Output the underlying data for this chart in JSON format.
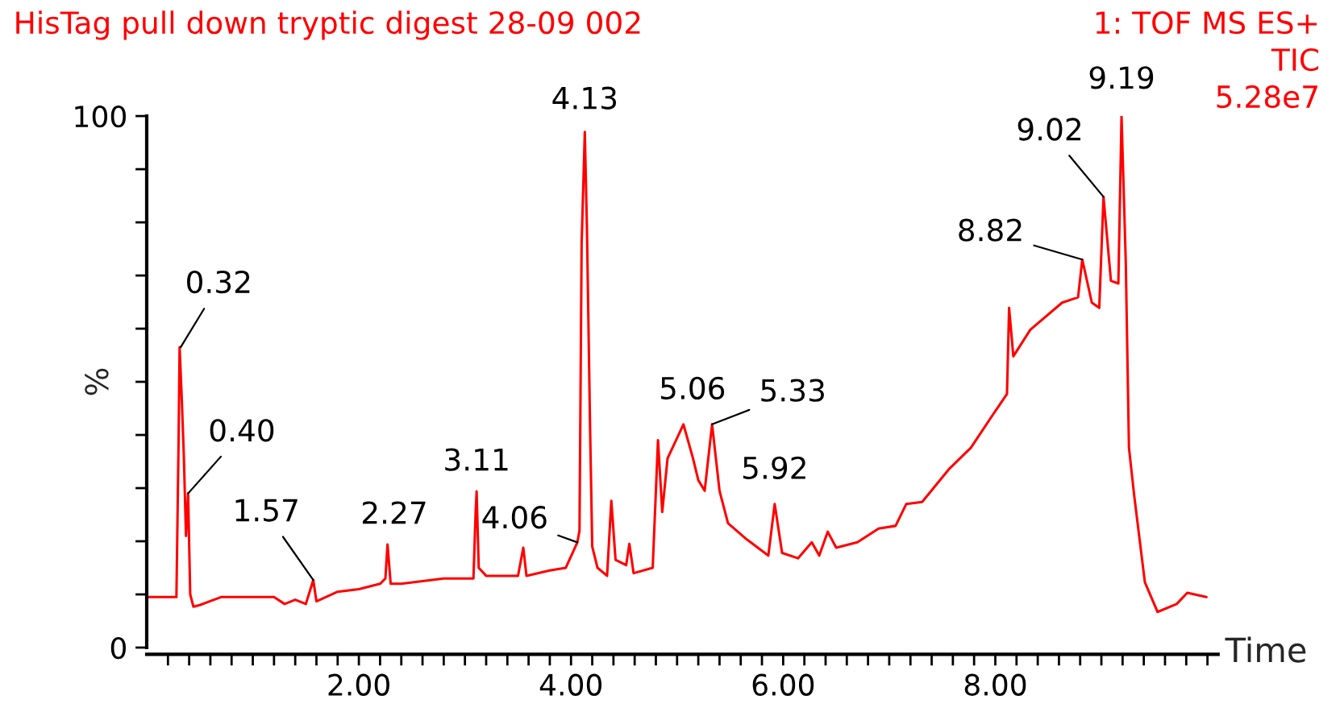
{
  "chart_data": {
    "type": "line",
    "title": "HisTag pull down tryptic digest 28-09 002",
    "xlabel": "Time",
    "ylabel": "%",
    "x": [
      0.0,
      0.28,
      0.29,
      0.3,
      0.31,
      0.33,
      0.35,
      0.37,
      0.39,
      0.41,
      0.44,
      0.5,
      0.7,
      1.0,
      1.2,
      1.3,
      1.4,
      1.5,
      1.57,
      1.6,
      1.8,
      2.0,
      2.2,
      2.25,
      2.27,
      2.3,
      2.4,
      2.6,
      2.8,
      3.0,
      3.08,
      3.1,
      3.11,
      3.13,
      3.2,
      3.5,
      3.55,
      3.58,
      3.8,
      3.95,
      4.06,
      4.08,
      4.1,
      4.13,
      4.15,
      4.18,
      4.2,
      4.25,
      4.34,
      4.38,
      4.42,
      4.52,
      4.55,
      4.59,
      4.77,
      4.82,
      4.86,
      4.91,
      5.06,
      5.15,
      5.2,
      5.26,
      5.33,
      5.4,
      5.48,
      5.66,
      5.86,
      5.92,
      5.99,
      6.14,
      6.27,
      6.34,
      6.42,
      6.5,
      6.7,
      6.9,
      7.06,
      7.16,
      7.31,
      7.56,
      7.77,
      7.97,
      8.11,
      8.13,
      8.17,
      8.33,
      8.63,
      8.78,
      8.82,
      8.91,
      8.98,
      9.02,
      9.09,
      9.16,
      9.19,
      9.23,
      9.26,
      9.31,
      9.41,
      9.53,
      9.71,
      9.81,
      9.99
    ],
    "series": [
      {
        "color": "#ff0000",
        "values": [
          9.5,
          9.5,
          24,
          38.5,
          56.5,
          47,
          36,
          21,
          29,
          10,
          7.7,
          8,
          9.5,
          9.5,
          9.5,
          8.2,
          9,
          8.2,
          12.7,
          8.7,
          10.5,
          11,
          12,
          13,
          19.4,
          12,
          12,
          12.5,
          13,
          13,
          13,
          25,
          29.4,
          15,
          13.5,
          13.5,
          18.8,
          13.5,
          14.5,
          15,
          19.8,
          22,
          76,
          97,
          79,
          41,
          19,
          15,
          13.5,
          27.6,
          16.5,
          15.5,
          19.5,
          14,
          15,
          39,
          25.5,
          35.6,
          42,
          35.6,
          31.5,
          29.5,
          42,
          29.5,
          23.4,
          20.3,
          17.3,
          27,
          17.8,
          16.8,
          19.8,
          17.3,
          21.8,
          18.8,
          19.8,
          22.4,
          22.9,
          27,
          27.4,
          33.5,
          37.6,
          43.6,
          47.7,
          63.9,
          54.8,
          59.8,
          64.9,
          65.9,
          73,
          64.9,
          63.9,
          84.8,
          69,
          68.5,
          100,
          72.5,
          37.6,
          28.5,
          12.3,
          6.7,
          8.2,
          10.3,
          9.5
        ]
      }
    ],
    "xlim": [
      0,
      10.1
    ],
    "xticks": [
      {
        "value": 0.2,
        "label": null
      },
      {
        "value": 0.4,
        "label": null
      },
      {
        "value": 0.6,
        "label": null
      },
      {
        "value": 0.8,
        "label": null
      },
      {
        "value": 1.0,
        "label": null
      },
      {
        "value": 1.2,
        "label": null
      },
      {
        "value": 1.4,
        "label": null
      },
      {
        "value": 1.6,
        "label": null
      },
      {
        "value": 1.8,
        "label": null
      },
      {
        "value": 2,
        "label": "2.00"
      },
      {
        "value": 2.2,
        "label": null
      },
      {
        "value": 2.4,
        "label": null
      },
      {
        "value": 2.6,
        "label": null
      },
      {
        "value": 2.8,
        "label": null
      },
      {
        "value": 3.0,
        "label": null
      },
      {
        "value": 3.2,
        "label": null
      },
      {
        "value": 3.4,
        "label": null
      },
      {
        "value": 3.6,
        "label": null
      },
      {
        "value": 3.8,
        "label": null
      },
      {
        "value": 4,
        "label": "4.00"
      },
      {
        "value": 4.2,
        "label": null
      },
      {
        "value": 4.4,
        "label": null
      },
      {
        "value": 4.6,
        "label": null
      },
      {
        "value": 4.8,
        "label": null
      },
      {
        "value": 5.0,
        "label": null
      },
      {
        "value": 5.2,
        "label": null
      },
      {
        "value": 5.4,
        "label": null
      },
      {
        "value": 5.6,
        "label": null
      },
      {
        "value": 5.8,
        "label": null
      },
      {
        "value": 6,
        "label": "6.00"
      },
      {
        "value": 6.2,
        "label": null
      },
      {
        "value": 6.4,
        "label": null
      },
      {
        "value": 6.6,
        "label": null
      },
      {
        "value": 6.8,
        "label": null
      },
      {
        "value": 7.0,
        "label": null
      },
      {
        "value": 7.2,
        "label": null
      },
      {
        "value": 7.4,
        "label": null
      },
      {
        "value": 7.6,
        "label": null
      },
      {
        "value": 7.8,
        "label": null
      },
      {
        "value": 8,
        "label": "8.00"
      },
      {
        "value": 8.2,
        "label": null
      },
      {
        "value": 8.4,
        "label": null
      },
      {
        "value": 8.6,
        "label": null
      },
      {
        "value": 8.8,
        "label": null
      },
      {
        "value": 9.0,
        "label": null
      },
      {
        "value": 9.2,
        "label": null
      },
      {
        "value": 9.4,
        "label": null
      },
      {
        "value": 9.6,
        "label": null
      },
      {
        "value": 9.8,
        "label": null
      },
      {
        "value": 10.0,
        "label": null
      }
    ],
    "ylim": [
      0,
      100
    ],
    "yticks": [
      0,
      {
        "value": 10,
        "label": null
      },
      {
        "value": 20,
        "label": null
      },
      {
        "value": 30,
        "label": null
      },
      {
        "value": 40,
        "label": null
      },
      {
        "value": 50,
        "label": null
      },
      {
        "value": 60,
        "label": null
      },
      {
        "value": 70,
        "label": null
      },
      {
        "value": 80,
        "label": null
      },
      {
        "value": 90,
        "label": null
      },
      100
    ],
    "grid": false,
    "legend": false,
    "marker": "none",
    "line_style": "solid",
    "annotations": [
      "1: TOF MS ES+",
      "TIC",
      "5.28e7",
      {
        "text": "0.32",
        "x": 0.32,
        "y": 56.5
      },
      {
        "text": "0.40",
        "x": 0.39,
        "y": 29
      },
      {
        "text": "1.57",
        "x": 1.57,
        "y": 12.7
      },
      {
        "text": "2.27",
        "x": 2.27,
        "y": 19.4
      },
      {
        "text": "3.11",
        "x": 3.11,
        "y": 29.4
      },
      {
        "text": "4.06",
        "x": 4.06,
        "y": 19.8
      },
      {
        "text": "4.13",
        "x": 4.13,
        "y": 97
      },
      {
        "text": "5.06",
        "x": 5.06,
        "y": 42
      },
      {
        "text": "5.33",
        "x": 5.33,
        "y": 42
      },
      {
        "text": "5.92",
        "x": 5.92,
        "y": 27
      },
      {
        "text": "8.82",
        "x": 8.82,
        "y": 73
      },
      {
        "text": "9.02",
        "x": 9.02,
        "y": 84.8
      },
      {
        "text": "9.19",
        "x": 9.19,
        "y": 100
      }
    ]
  }
}
